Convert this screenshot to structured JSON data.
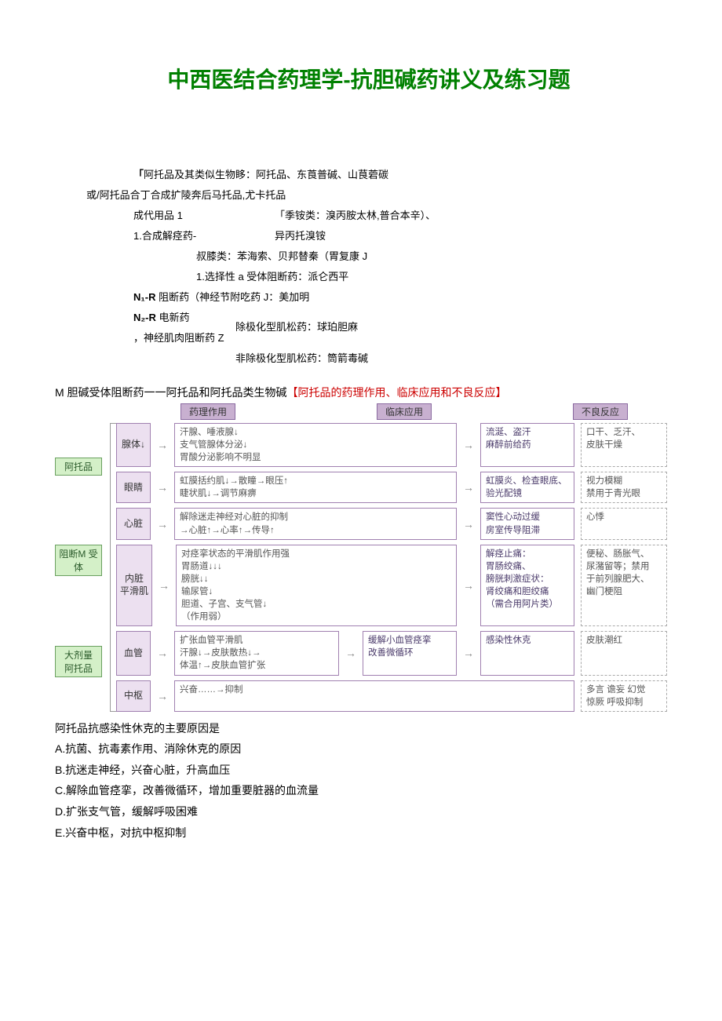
{
  "title": "中西医结合药理学-抗胆碱药讲义及练习题",
  "outline": {
    "line1_pre": "「",
    "line1": "阿托品及其类似生物眵：阿托品、东莨普碱、山茛菪碳",
    "line2": "或/阿托品合丁合成扩陵奔后马托品,尤卡托品",
    "line3a": "成代用品 1",
    "line3b": "「季铵类：溴丙胺太林,普合本辛）、",
    "line4a": "1.合成解痉药-",
    "line4b": "异丙托溴铵",
    "line5": "叔膝类：苯海索、贝邦替秦（胃复康 J",
    "line6": "1.选择性 a 受体阻断药：派仑西平",
    "line7a_b": "N₁-R",
    "line7a": " 阻断药（神经节附吃药 J：美加明",
    "line8a_b": "N₂-R",
    "line8a": " 电新药",
    "line8b": "，神经肌肉阻断药 Z",
    "line8c": "除极化型肌松药：球珀胆麻",
    "line9": "非除极化型肌松药：筒箭毒碱"
  },
  "section": {
    "black": "M 胆碱受体阻断药一一阿托品和阿托品类生物碱",
    "red": "【阿托品的药理作用、临床应用和不良反应】"
  },
  "headers": {
    "h1": "药理作用",
    "h2": "临床应用",
    "h3": "不良反应"
  },
  "tags": {
    "t1": "阿托品",
    "t2": "阻断M\n受体",
    "t3": "大剂量\n阿托品"
  },
  "rows": [
    {
      "lbl": "腺体↓",
      "desc": "汗腺、唾液腺↓\n支气管腺体分泌↓\n胃酸分泌影响不明显",
      "clin": "流涎、盗汗\n麻醉前给药",
      "adv": "口干、乏汗、\n皮肤干燥"
    },
    {
      "lbl": "眼睛",
      "desc": "虹膜括约肌↓→散瞳→眼压↑\n睫状肌↓→调节麻痹",
      "clin": "虹膜炎、检查眼底、\n验光配镜",
      "adv": "视力模糊\n禁用于青光眼"
    },
    {
      "lbl": "心脏",
      "desc": "解除迷走神经对心脏的抑制\n→心脏↑→心率↑→传导↑",
      "clin": "窦性心动过缓\n房室传导阻滞",
      "adv": "心悸"
    },
    {
      "lbl": "内脏\n平滑肌",
      "desc": "对痉挛状态的平滑肌作用强\n  胃肠道↓↓↓\n  膀胱↓↓\n  输尿管↓\n  胆道、子宫、支气管↓\n  （作用弱）",
      "clin": "解痉止痛：\n胃肠绞痛、\n膀胱刺激症状：\n肾绞痛和胆绞痛\n（需合用阿片类）",
      "adv": "便秘、肠胀气、\n尿潴留等；禁用\n于前列腺肥大、\n幽门梗阻"
    },
    {
      "lbl": "血管",
      "desc": "扩张血管平滑肌\n汗腺↓→皮肤散热↓→\n体温↑→皮肤血管扩张",
      "clin": "缓解小血管痉挛\n改善微循环",
      "clin2": "感染性休克",
      "adv": "皮肤潮红"
    },
    {
      "lbl": "中枢",
      "desc": "兴奋……→抑制",
      "clin": "",
      "adv": "多言 谵妄 幻觉\n惊厥 呼吸抑制"
    }
  ],
  "qa": {
    "stem": "阿托品抗感染性休克的主要原因是",
    "opts": [
      "A.抗菌、抗毒素作用、消除休克的原因",
      "B.抗迷走神经，兴奋心脏，升高血压",
      "C.解除血管痉挛，改善微循环，增加重要脏器的血流量",
      "D.扩张支气管，缓解呼吸困难",
      "E.兴奋中枢，对抗中枢抑制"
    ]
  },
  "colors": {
    "title": "#008000",
    "red": "#cc0000",
    "hdr_bg": "#c8b0d0",
    "hdr_bd": "#8a6aa0",
    "tag_bg": "#d4f0c8",
    "tag_bd": "#6aa060",
    "box_bd": "#a080b0"
  }
}
